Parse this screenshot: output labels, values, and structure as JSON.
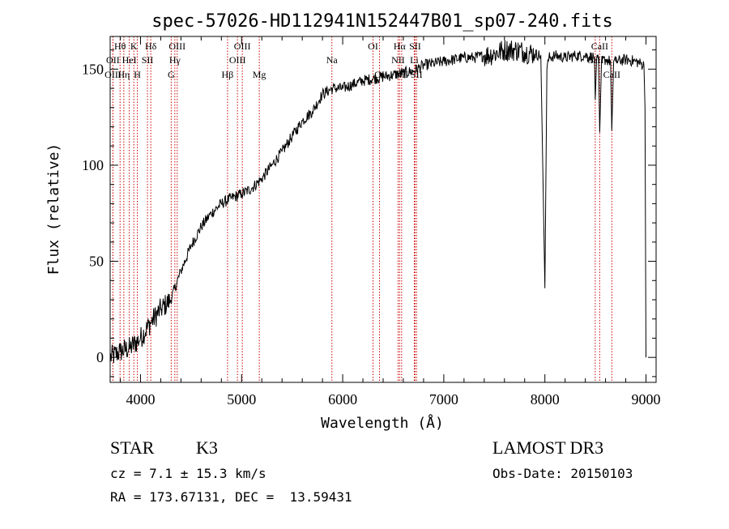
{
  "chart_data": {
    "type": "line",
    "title": "spec-57026-HD112941N152447B01_sp07-240.fits",
    "xlabel": "Wavelength (Å)",
    "ylabel": "Flux (relative)",
    "xlim": [
      3700,
      9100
    ],
    "ylim": [
      -13,
      167
    ],
    "x_ticks": [
      4000,
      5000,
      6000,
      7000,
      8000,
      9000
    ],
    "y_ticks": [
      0,
      50,
      100,
      150
    ],
    "x_tick_labels": [
      "4000",
      "5000",
      "6000",
      "7000",
      "8000",
      "9000"
    ],
    "y_tick_labels": [
      "0",
      "50",
      "100",
      "150"
    ],
    "series": [
      {
        "name": "spectrum",
        "x": [
          3700,
          3800,
          3900,
          4000,
          4100,
          4200,
          4300,
          4400,
          4500,
          4600,
          4700,
          4800,
          4900,
          5000,
          5100,
          5200,
          5300,
          5400,
          5500,
          5600,
          5700,
          5800,
          5900,
          6000,
          6100,
          6200,
          6300,
          6400,
          6500,
          6600,
          6700,
          6800,
          6900,
          7000,
          7100,
          7200,
          7300,
          7400,
          7500,
          7600,
          7700,
          7800,
          7900,
          7960,
          8000,
          8020,
          8040,
          8100,
          8200,
          8300,
          8400,
          8490,
          8498,
          8510,
          8530,
          8542,
          8560,
          8600,
          8650,
          8662,
          8680,
          8700,
          8800,
          8900,
          8980,
          8990,
          9000
        ],
        "y": [
          0,
          3,
          5,
          10,
          18,
          25,
          30,
          45,
          58,
          68,
          75,
          80,
          83,
          85,
          88,
          93,
          100,
          107,
          115,
          123,
          128,
          137,
          140,
          140,
          142,
          144,
          145,
          146,
          147,
          148,
          149,
          152,
          153,
          154,
          155,
          156,
          156,
          157,
          158,
          160,
          160,
          159,
          158,
          157,
          36,
          150,
          156,
          157,
          156,
          157,
          157,
          156,
          134,
          154,
          155,
          117,
          154,
          155,
          154,
          118,
          154,
          154,
          155,
          154,
          152,
          130,
          0
        ]
      }
    ],
    "spectral_lines": [
      {
        "label": "Hθ",
        "wavelength": 3798,
        "row": 1
      },
      {
        "label": "OII",
        "wavelength": 3727,
        "row": 2
      },
      {
        "label": "OIII",
        "wavelength": 3728,
        "row": 3
      },
      {
        "label": "K",
        "wavelength": 3934,
        "row": 1
      },
      {
        "label": "HeI",
        "wavelength": 3889,
        "row": 2
      },
      {
        "label": "Hη",
        "wavelength": 3835,
        "row": 3
      },
      {
        "label": "H",
        "wavelength": 3969,
        "row": 3
      },
      {
        "label": "SII",
        "wavelength": 4069,
        "row": 2
      },
      {
        "label": "Hδ",
        "wavelength": 4102,
        "row": 1
      },
      {
        "label": "OIII",
        "wavelength": 4363,
        "row": 1
      },
      {
        "label": "Hγ",
        "wavelength": 4340,
        "row": 2
      },
      {
        "label": "G",
        "wavelength": 4304,
        "row": 3
      },
      {
        "label": "Hβ",
        "wavelength": 4861,
        "row": 3
      },
      {
        "label": "OIII",
        "wavelength": 5007,
        "row": 1
      },
      {
        "label": "OIII",
        "wavelength": 4959,
        "row": 2
      },
      {
        "label": "Mg",
        "wavelength": 5175,
        "row": 3
      },
      {
        "label": "Na",
        "wavelength": 5893,
        "row": 2
      },
      {
        "label": "OI",
        "wavelength": 6300,
        "row": 1
      },
      {
        "label": "OI",
        "wavelength": 6364,
        "row": 3
      },
      {
        "label": "Hα",
        "wavelength": 6563,
        "row": 1
      },
      {
        "label": "SII",
        "wavelength": 6716,
        "row": 1
      },
      {
        "label": "NII",
        "wavelength": 6548,
        "row": 2
      },
      {
        "label": "Li",
        "wavelength": 6708,
        "row": 2
      },
      {
        "label": "NII",
        "wavelength": 6583,
        "row": 3
      },
      {
        "label": "SII",
        "wavelength": 6731,
        "row": 3
      },
      {
        "label": "CaII",
        "wavelength": 8542,
        "row": 1
      },
      {
        "label": "CaII",
        "wavelength": 8498,
        "row": 2
      },
      {
        "label": "CaII",
        "wavelength": 8662,
        "row": 3
      }
    ],
    "colors": {
      "spectrum": "#000000",
      "lines": "#cc0000",
      "axes": "#000000"
    }
  },
  "info": {
    "object_class": "STAR",
    "subclass": "K3",
    "survey": "LAMOST DR3",
    "cz": "cz = 7.1 ± 15.3 km/s",
    "obs_date": "Obs-Date: 20150103",
    "coords": "RA = 173.67131, DEC =  13.59431"
  }
}
